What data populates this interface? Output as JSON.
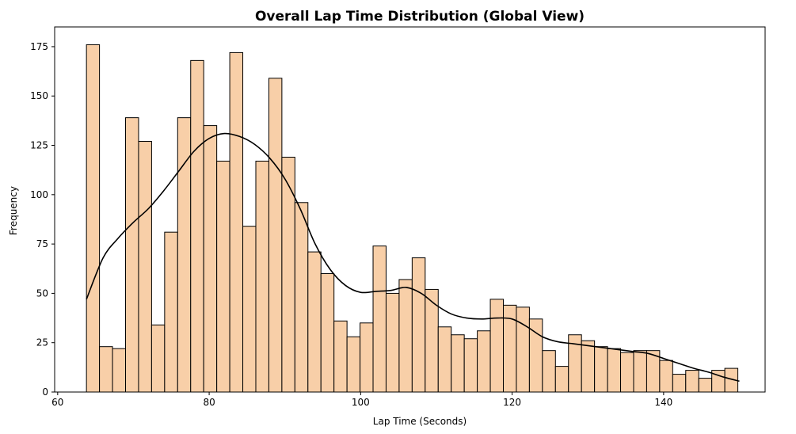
{
  "chart_data": {
    "type": "bar",
    "title": "Overall Lap Time Distribution (Global View)",
    "xlabel": "Lap Time (Seconds)",
    "ylabel": "Frequency",
    "xlim": [
      59.6,
      153.4
    ],
    "ylim": [
      0,
      185
    ],
    "x_ticks": [
      60,
      80,
      100,
      120,
      140
    ],
    "y_ticks": [
      0,
      25,
      50,
      75,
      100,
      125,
      150,
      175
    ],
    "grid": false,
    "legend": "none",
    "bar_color": "#f8cfa8",
    "edge_color": "#000000",
    "bin_start": 63.8,
    "bin_width": 1.72,
    "values": [
      176,
      23,
      22,
      139,
      127,
      34,
      81,
      139,
      168,
      135,
      117,
      172,
      84,
      117,
      159,
      119,
      96,
      71,
      60,
      36,
      28,
      35,
      74,
      50,
      57,
      68,
      52,
      33,
      29,
      27,
      31,
      47,
      44,
      43,
      37,
      21,
      13,
      29,
      26,
      23,
      22,
      20,
      21,
      21,
      16,
      9,
      11,
      7,
      11,
      12
    ],
    "kde": {
      "color": "#000000",
      "x": [
        63.8,
        66,
        68,
        70,
        72,
        74,
        76,
        78,
        80,
        82,
        84,
        86,
        88,
        90,
        92,
        94,
        96,
        98,
        100,
        102,
        104,
        106,
        108,
        110,
        112,
        114,
        116,
        118,
        120,
        122,
        124,
        126,
        128,
        130,
        132,
        134,
        136,
        138,
        140,
        142,
        144,
        146,
        148,
        150
      ],
      "y": [
        47,
        68,
        78,
        86,
        93,
        102,
        112,
        122,
        128.5,
        131,
        129.5,
        125.5,
        118.5,
        108,
        93,
        75,
        62,
        54,
        50.5,
        51,
        51.5,
        53,
        50,
        44,
        39.5,
        37.5,
        37,
        37.5,
        37,
        33,
        28,
        25.5,
        24.5,
        23.5,
        22.5,
        21.5,
        20.5,
        19.5,
        17,
        14.5,
        12,
        10,
        7.5,
        5.5
      ]
    }
  }
}
